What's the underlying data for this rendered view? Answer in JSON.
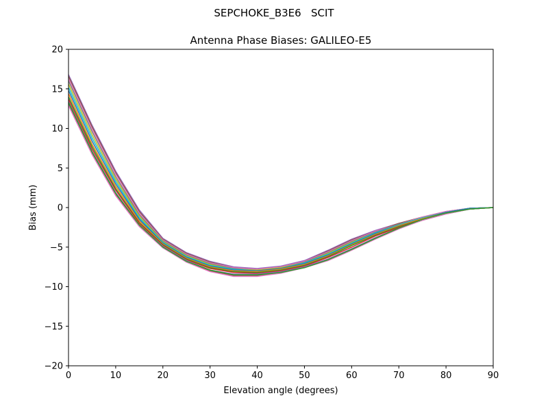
{
  "figure": {
    "suptitle": "SEPCHOKE_B3E6   SCIT"
  },
  "chart_data": {
    "type": "line",
    "title": "Antenna Phase Biases: GALILEO-E5",
    "xlabel": "Elevation angle (degrees)",
    "ylabel": "Bias (mm)",
    "xlim": [
      0,
      90
    ],
    "ylim": [
      -20,
      20
    ],
    "xticks": [
      0,
      10,
      20,
      30,
      40,
      50,
      60,
      70,
      80,
      90
    ],
    "yticks": [
      20,
      15,
      10,
      5,
      0,
      -5,
      -10,
      -15,
      -20
    ],
    "ytick_labels": [
      "20",
      "15",
      "10",
      "5",
      "0",
      "−5",
      "−10",
      "−15",
      "−20"
    ],
    "grid": false,
    "legend": "none",
    "x": [
      0,
      5,
      10,
      15,
      20,
      25,
      30,
      35,
      40,
      45,
      50,
      55,
      60,
      65,
      70,
      75,
      80,
      85,
      90
    ],
    "series": [
      {
        "color": "#9467bd",
        "values": [
          16.8,
          10.4,
          4.6,
          -0.3,
          -3.9,
          -5.7,
          -6.8,
          -7.5,
          -7.7,
          -7.4,
          -6.7,
          -5.4,
          -4.0,
          -2.9,
          -2.0,
          -1.2,
          -0.5,
          -0.1,
          0.0
        ]
      },
      {
        "color": "#8c564b",
        "values": [
          16.6,
          10.2,
          4.4,
          -0.5,
          -4.0,
          -5.8,
          -6.9,
          -7.6,
          -7.8,
          -7.5,
          -6.8,
          -5.5,
          -4.1,
          -3.0,
          -2.0,
          -1.2,
          -0.5,
          -0.1,
          0.0
        ]
      },
      {
        "color": "#e377c2",
        "values": [
          16.3,
          9.9,
          4.2,
          -0.7,
          -4.1,
          -5.9,
          -7.0,
          -7.6,
          -7.8,
          -7.5,
          -6.8,
          -5.6,
          -4.2,
          -3.0,
          -2.1,
          -1.2,
          -0.5,
          -0.1,
          0.0
        ]
      },
      {
        "color": "#7f7f7f",
        "values": [
          16.0,
          9.6,
          3.9,
          -0.9,
          -4.2,
          -6.0,
          -7.1,
          -7.7,
          -7.9,
          -7.6,
          -6.9,
          -5.7,
          -4.3,
          -3.1,
          -2.1,
          -1.3,
          -0.6,
          -0.1,
          0.0
        ]
      },
      {
        "color": "#bcbd22",
        "values": [
          15.6,
          9.2,
          3.6,
          -1.1,
          -4.3,
          -6.1,
          -7.2,
          -7.8,
          -7.9,
          -7.6,
          -7.0,
          -5.8,
          -4.4,
          -3.2,
          -2.2,
          -1.3,
          -0.6,
          -0.1,
          0.0
        ]
      },
      {
        "color": "#17becf",
        "values": [
          15.2,
          8.8,
          3.3,
          -1.3,
          -4.4,
          -6.2,
          -7.3,
          -7.8,
          -8.0,
          -7.7,
          -7.0,
          -5.9,
          -4.5,
          -3.2,
          -2.2,
          -1.3,
          -0.6,
          -0.1,
          0.0
        ]
      },
      {
        "color": "#1f77b4",
        "values": [
          14.8,
          8.4,
          3.0,
          -1.5,
          -4.5,
          -6.3,
          -7.4,
          -7.9,
          -8.0,
          -7.7,
          -7.1,
          -6.0,
          -4.6,
          -3.3,
          -2.3,
          -1.4,
          -0.6,
          -0.1,
          0.0
        ]
      },
      {
        "color": "#ff7f0e",
        "values": [
          14.4,
          8.0,
          2.7,
          -1.7,
          -4.6,
          -6.4,
          -7.5,
          -8.0,
          -8.1,
          -7.8,
          -7.2,
          -6.1,
          -4.7,
          -3.4,
          -2.3,
          -1.4,
          -0.7,
          -0.2,
          0.0
        ]
      },
      {
        "color": "#2ca02c",
        "values": [
          14.0,
          7.7,
          2.4,
          -1.9,
          -4.7,
          -6.5,
          -7.6,
          -8.1,
          -8.2,
          -7.9,
          -7.3,
          -6.2,
          -4.8,
          -3.5,
          -2.4,
          -1.5,
          -0.7,
          -0.2,
          0.0
        ]
      },
      {
        "color": "#d62728",
        "values": [
          13.7,
          7.4,
          2.2,
          -2.0,
          -4.8,
          -6.6,
          -7.7,
          -8.2,
          -8.3,
          -8.0,
          -7.4,
          -6.3,
          -5.0,
          -3.6,
          -2.5,
          -1.5,
          -0.7,
          -0.2,
          0.0
        ]
      },
      {
        "color": "#9467bd",
        "values": [
          13.4,
          7.1,
          1.9,
          -2.2,
          -4.9,
          -6.7,
          -7.9,
          -8.4,
          -8.4,
          -8.1,
          -7.5,
          -6.5,
          -5.2,
          -3.8,
          -2.6,
          -1.6,
          -0.8,
          -0.2,
          0.0
        ]
      },
      {
        "color": "#8c564b",
        "values": [
          13.1,
          6.9,
          1.7,
          -2.3,
          -5.0,
          -6.8,
          -8.0,
          -8.6,
          -8.6,
          -8.2,
          -7.6,
          -6.6,
          -5.3,
          -3.9,
          -2.6,
          -1.6,
          -0.8,
          -0.2,
          0.0
        ]
      },
      {
        "color": "#e377c2",
        "values": [
          12.9,
          6.7,
          1.5,
          -2.4,
          -5.1,
          -6.9,
          -8.1,
          -8.7,
          -8.7,
          -8.3,
          -7.6,
          -6.7,
          -5.4,
          -4.0,
          -2.7,
          -1.6,
          -0.8,
          -0.2,
          0.0
        ]
      },
      {
        "color": "#2ca02c",
        "values": [
          13.3,
          7.0,
          1.8,
          -2.2,
          -5.0,
          -6.8,
          -7.9,
          -8.5,
          -8.5,
          -8.2,
          -7.6,
          -6.6,
          -5.3,
          -3.9,
          -2.6,
          -1.5,
          -0.7,
          -0.2,
          0.0
        ]
      }
    ]
  }
}
